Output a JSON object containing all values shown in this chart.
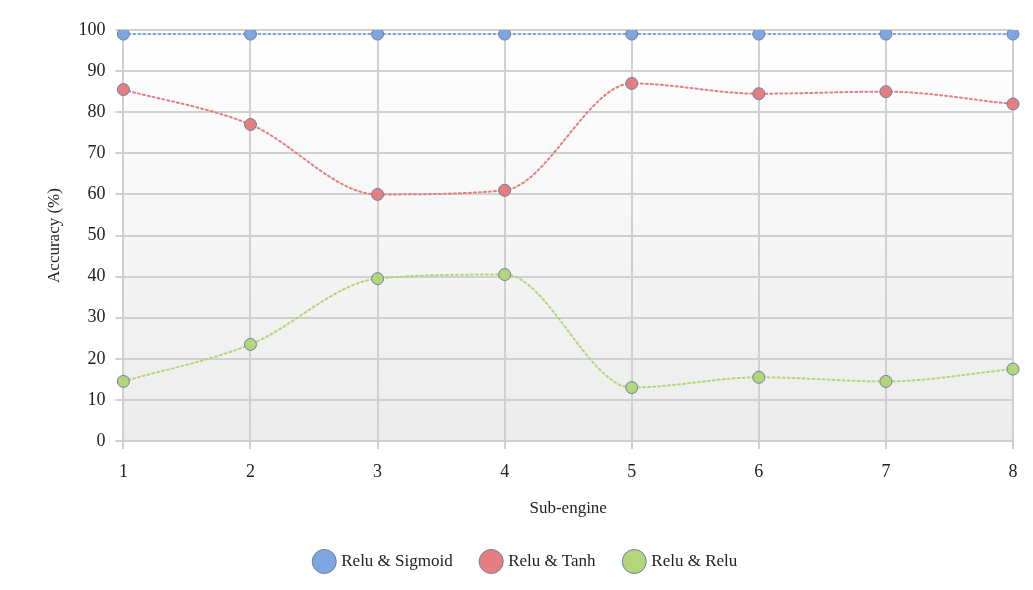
{
  "chart_data": {
    "type": "line",
    "xlabel": "Sub-engine",
    "ylabel": "Accuracy (%)",
    "categories": [
      "1",
      "2",
      "3",
      "4",
      "5",
      "6",
      "7",
      "8"
    ],
    "series": [
      {
        "name": "Relu & Sigmoid",
        "color": "#7ea6e0",
        "values": [
          99,
          99,
          99,
          99,
          99,
          99,
          99,
          99
        ]
      },
      {
        "name": "Relu & Tanh",
        "color": "#e57f7f",
        "values": [
          85.5,
          77,
          60,
          61,
          87,
          84.5,
          85,
          82
        ]
      },
      {
        "name": "Relu & Relu",
        "color": "#b3d67a",
        "values": [
          14.5,
          23.5,
          39.5,
          40.5,
          13,
          15.5,
          14.5,
          17.5
        ]
      }
    ],
    "ylim": [
      0,
      100
    ],
    "yticks": [
      0,
      10,
      20,
      30,
      40,
      50,
      60,
      70,
      80,
      90,
      100
    ],
    "grid": true,
    "legend": "bottom",
    "marker": "circle",
    "line_style": "dotted"
  }
}
